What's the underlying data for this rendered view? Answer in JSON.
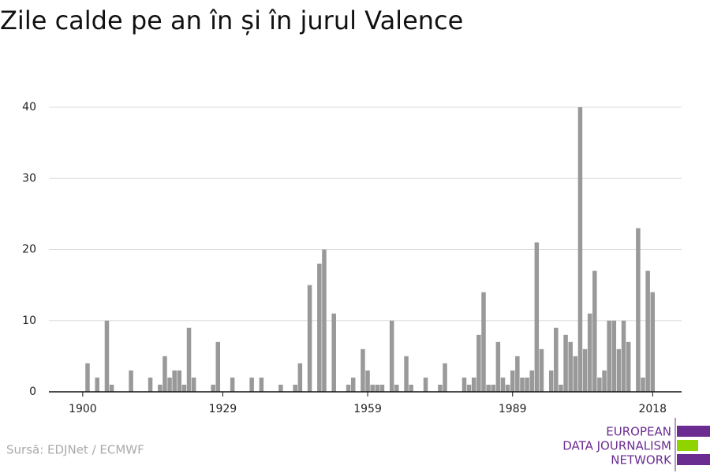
{
  "chart_data": {
    "type": "bar",
    "title": "Zile calde pe an în și în jurul Valence",
    "source": "Sursă: EDJNet / ECMWF",
    "logo": [
      "EUROPEAN",
      "DATA JOURNALISM",
      "NETWORK"
    ],
    "color": "#999999",
    "grid": true,
    "x": [
      1901,
      1903,
      1905,
      1906,
      1910,
      1914,
      1916,
      1917,
      1918,
      1919,
      1920,
      1921,
      1922,
      1923,
      1927,
      1928,
      1931,
      1935,
      1937,
      1941,
      1944,
      1945,
      1947,
      1949,
      1950,
      1952,
      1955,
      1956,
      1958,
      1959,
      1960,
      1961,
      1962,
      1964,
      1965,
      1967,
      1968,
      1971,
      1974,
      1975,
      1979,
      1980,
      1981,
      1982,
      1983,
      1984,
      1985,
      1986,
      1987,
      1988,
      1989,
      1990,
      1991,
      1992,
      1993,
      1994,
      1995,
      1997,
      1998,
      1999,
      2000,
      2001,
      2002,
      2003,
      2004,
      2005,
      2006,
      2007,
      2008,
      2009,
      2010,
      2011,
      2012,
      2013,
      2015,
      2016,
      2017,
      2018
    ],
    "values": [
      4,
      2,
      10,
      1,
      3,
      2,
      1,
      5,
      2,
      3,
      3,
      1,
      9,
      2,
      1,
      7,
      2,
      2,
      2,
      1,
      1,
      4,
      15,
      18,
      20,
      11,
      1,
      2,
      6,
      3,
      1,
      1,
      1,
      10,
      1,
      5,
      1,
      2,
      1,
      4,
      2,
      1,
      2,
      8,
      14,
      1,
      1,
      7,
      2,
      1,
      3,
      5,
      2,
      2,
      3,
      21,
      6,
      3,
      9,
      1,
      8,
      7,
      5,
      40,
      6,
      11,
      17,
      2,
      3,
      10,
      10,
      6,
      10,
      7,
      23,
      2,
      17,
      14
    ],
    "xlim": [
      1893,
      2024
    ],
    "xticks": [
      1900,
      1929,
      1959,
      1989,
      2018
    ],
    "ylim": [
      0,
      40
    ],
    "yticks": [
      0,
      10,
      20,
      30,
      40
    ]
  }
}
